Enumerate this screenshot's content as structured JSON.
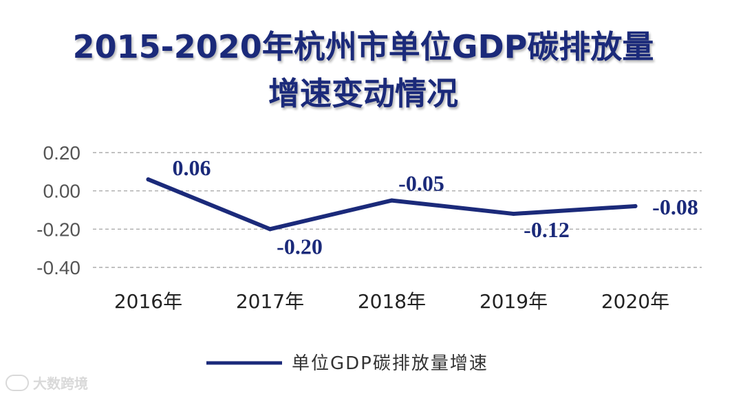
{
  "title_line1": "2015-2020年杭州市单位GDP碳排放量",
  "title_line2": "增速变动情况",
  "watermark": "大数跨境",
  "colors": {
    "series": "#1b2a7a",
    "grid": "#9a9a9a",
    "title": "#1b2a7a"
  },
  "chart_data": {
    "type": "line",
    "title": "2015-2020年杭州市单位GDP碳排放量增速变动情况",
    "categories": [
      "2016年",
      "2017年",
      "2018年",
      "2019年",
      "2020年"
    ],
    "series": [
      {
        "name": "单位GDP碳排放量增速",
        "values": [
          0.06,
          -0.2,
          -0.05,
          -0.12,
          -0.08
        ]
      }
    ],
    "data_labels": [
      "0.06",
      "-0.20",
      "-0.05",
      "-0.12",
      "-0.08"
    ],
    "yticks": [
      "0.20",
      "0.00",
      "-0.20",
      "-0.40"
    ],
    "ylim": [
      -0.4,
      0.2
    ],
    "grid": true,
    "legend_position": "bottom"
  }
}
